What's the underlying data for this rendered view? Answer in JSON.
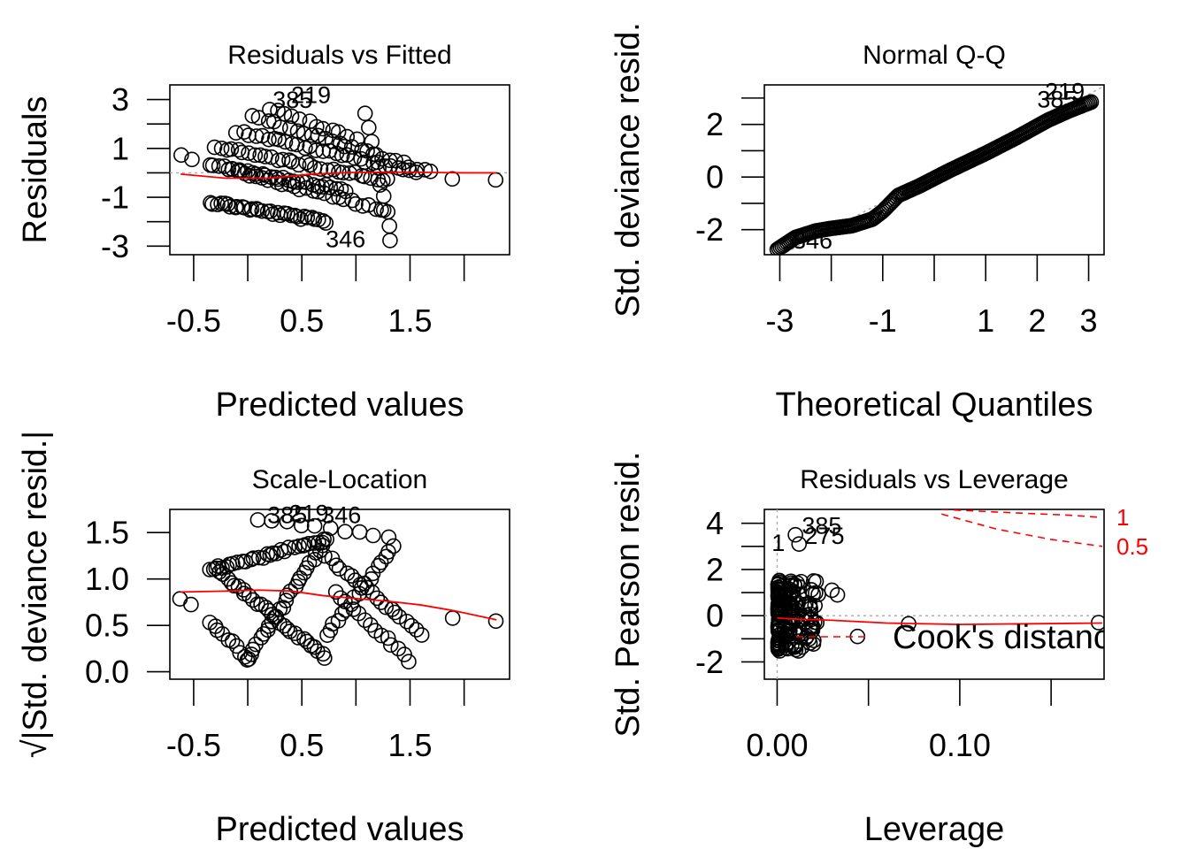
{
  "chart_data": [
    {
      "type": "scatter",
      "title": "Residuals vs Fitted",
      "xlabel": "Predicted values",
      "ylabel": "Residuals",
      "xlim": [
        -0.72,
        2.42
      ],
      "ylim": [
        -3.35,
        3.6
      ],
      "xticks": [
        -0.5,
        0.0,
        0.5,
        1.0,
        1.5,
        2.0
      ],
      "xtick_labels": [
        "-0.5",
        "",
        "0.5",
        "",
        "1.5",
        ""
      ],
      "yticks": [
        -3,
        -2,
        -1,
        0,
        1,
        2,
        3
      ],
      "ytick_labels": [
        "-3",
        "",
        "-1",
        "",
        "1",
        "",
        "3"
      ],
      "reference_line": {
        "y": 0,
        "style": "dotted",
        "color": "#aaaaaa"
      },
      "smooth": {
        "color": "#ff0000",
        "x": [
          -0.62,
          -0.2,
          0.2,
          0.6,
          1.0,
          1.5,
          2.0,
          2.3
        ],
        "y": [
          -0.05,
          -0.22,
          -0.22,
          -0.05,
          0.02,
          0.03,
          0.0,
          0.0
        ]
      },
      "labels": [
        {
          "text": "385",
          "x": 0.23,
          "y": 2.65
        },
        {
          "text": "219",
          "x": 0.4,
          "y": 2.85
        },
        {
          "text": "346",
          "x": 0.72,
          "y": -3.05
        }
      ],
      "bands": [
        {
          "x0": -0.62,
          "x1": -0.52,
          "y0": 0.7,
          "y1": 0.62,
          "n": 2
        },
        {
          "x0": -0.35,
          "x1": 0.72,
          "y0": -1.2,
          "y1": -2.0,
          "n": 34
        },
        {
          "x0": -0.35,
          "x1": 0.9,
          "y0": 0.35,
          "y1": -0.7,
          "n": 30
        },
        {
          "x0": -0.15,
          "x1": 1.3,
          "y0": 0.1,
          "y1": -1.55,
          "n": 26
        },
        {
          "x0": -0.3,
          "x1": 1.3,
          "y0": 1.05,
          "y1": -0.3,
          "n": 32
        },
        {
          "x0": -0.1,
          "x1": 1.55,
          "y0": 1.7,
          "y1": 0.05,
          "n": 30
        },
        {
          "x0": 0.05,
          "x1": 1.7,
          "y0": 2.3,
          "y1": 0.0,
          "n": 26
        },
        {
          "x0": 0.2,
          "x1": 1.0,
          "y0": 2.6,
          "y1": 1.4,
          "n": 12
        },
        {
          "x0": 1.9,
          "x1": 2.3,
          "y0": -0.25,
          "y1": -0.25,
          "n": 2
        },
        {
          "x0": 1.1,
          "x1": 1.32,
          "y0": 2.4,
          "y1": -2.7,
          "n": 10
        }
      ]
    },
    {
      "type": "scatter",
      "title": "Normal Q-Q",
      "xlabel": "Theoretical Quantiles",
      "ylabel": "Std. deviance resid.",
      "xlim": [
        -3.3,
        3.3
      ],
      "ylim": [
        -2.95,
        3.5
      ],
      "xticks": [
        -3,
        -2,
        -1,
        0,
        1,
        2,
        3
      ],
      "xtick_labels": [
        "-3",
        "",
        "-1",
        "",
        "1",
        "2",
        "3"
      ],
      "yticks": [
        -2,
        -1,
        0,
        1,
        2,
        3
      ],
      "ytick_labels": [
        "-2",
        "",
        "0",
        "",
        "2",
        ""
      ],
      "reference_line": {
        "x0": -3.3,
        "y0": -3.3,
        "x1": 3.3,
        "y1": 3.45,
        "style": "dotted",
        "color": "#aaaaaa"
      },
      "curve": {
        "x": [
          -3.05,
          -2.7,
          -2.3,
          -2.0,
          -1.6,
          -1.2,
          -1.0,
          -0.7,
          -0.3,
          0.3,
          1.0,
          1.6,
          2.2,
          2.6,
          3.05
        ],
        "y": [
          -2.75,
          -2.3,
          -2.05,
          -1.95,
          -1.85,
          -1.6,
          -1.3,
          -0.7,
          -0.35,
          0.25,
          0.9,
          1.5,
          2.15,
          2.5,
          2.85
        ],
        "n": 190
      },
      "labels": [
        {
          "text": "385",
          "x": 2.0,
          "y": 2.65
        },
        {
          "text": "219",
          "x": 2.15,
          "y": 2.95
        },
        {
          "text": "346",
          "x": -2.75,
          "y": -2.72
        }
      ]
    },
    {
      "type": "scatter",
      "title": "Scale-Location",
      "xlabel": "Predicted values",
      "ylabel": "√|Std. deviance resid.|",
      "xlim": [
        -0.72,
        2.42
      ],
      "ylim": [
        -0.08,
        1.75
      ],
      "xticks": [
        -0.5,
        0.0,
        0.5,
        1.0,
        1.5,
        2.0
      ],
      "xtick_labels": [
        "-0.5",
        "",
        "0.5",
        "",
        "1.5",
        ""
      ],
      "yticks": [
        0.0,
        0.5,
        1.0,
        1.5
      ],
      "ytick_labels": [
        "0.0",
        "0.5",
        "1.0",
        "1.5"
      ],
      "smooth": {
        "color": "#ff0000",
        "x": [
          -0.62,
          -0.2,
          0.1,
          0.4,
          0.7,
          1.0,
          1.3,
          1.6,
          1.9,
          2.3
        ],
        "y": [
          0.86,
          0.87,
          0.88,
          0.87,
          0.82,
          0.79,
          0.76,
          0.72,
          0.66,
          0.56
        ]
      },
      "labels": [
        {
          "text": "385",
          "x": 0.18,
          "y": 1.6
        },
        {
          "text": "219",
          "x": 0.38,
          "y": 1.62
        },
        {
          "text": "346",
          "x": 0.68,
          "y": 1.6
        }
      ],
      "bands": [
        {
          "x0": -0.62,
          "x1": -0.52,
          "y0": 0.77,
          "y1": 0.73,
          "n": 2
        },
        {
          "x0": -0.35,
          "x1": 0.72,
          "y0": 1.1,
          "y1": 1.42,
          "n": 30
        },
        {
          "x0": -0.3,
          "x1": 0.72,
          "y0": 1.1,
          "y1": 0.15,
          "n": 30
        },
        {
          "x0": 0.0,
          "x1": 0.72,
          "y0": 0.15,
          "y1": 1.42,
          "n": 26
        },
        {
          "x0": -0.35,
          "x1": 0.0,
          "y0": 0.55,
          "y1": 0.12,
          "n": 10
        },
        {
          "x0": 0.72,
          "x1": 1.35,
          "y0": 0.4,
          "y1": 1.35,
          "n": 18
        },
        {
          "x0": 0.72,
          "x1": 1.6,
          "y0": 1.25,
          "y1": 0.4,
          "n": 20
        },
        {
          "x0": 0.8,
          "x1": 1.5,
          "y0": 0.85,
          "y1": 0.12,
          "n": 14
        },
        {
          "x0": 0.1,
          "x1": 1.3,
          "y0": 1.65,
          "y1": 1.45,
          "n": 10
        },
        {
          "x0": 1.9,
          "x1": 2.3,
          "y0": 0.57,
          "y1": 0.55,
          "n": 2
        }
      ]
    },
    {
      "type": "scatter",
      "title": "Residuals vs Leverage",
      "xlabel": "Leverage",
      "ylabel": "Std. Pearson resid.",
      "xlim": [
        -0.007,
        0.179
      ],
      "ylim": [
        -2.75,
        4.6
      ],
      "xticks": [
        0.0,
        0.05,
        0.1,
        0.15
      ],
      "xtick_labels": [
        "0.00",
        "",
        "0.10",
        ""
      ],
      "yticks": [
        -2,
        -1,
        0,
        1,
        2,
        3,
        4
      ],
      "ytick_labels": [
        "-2",
        "",
        "0",
        "",
        "2",
        "",
        "4"
      ],
      "reference_lines": [
        {
          "y": 0,
          "style": "dotted",
          "color": "#aaaaaa"
        },
        {
          "x": 0,
          "style": "dotted",
          "color": "#aaaaaa"
        }
      ],
      "smooth": {
        "color": "#ff0000",
        "x": [
          0.0,
          0.01,
          0.03,
          0.06,
          0.1,
          0.14,
          0.178
        ],
        "y": [
          -0.1,
          -0.15,
          -0.2,
          -0.32,
          -0.38,
          -0.35,
          -0.32
        ]
      },
      "cook_contours": [
        {
          "level": "1",
          "color": "#ff0000",
          "style": "dashed",
          "x": [
            0.09,
            0.13,
            0.16,
            0.178
          ],
          "y": [
            4.6,
            4.45,
            4.35,
            4.25
          ]
        },
        {
          "level": "0.5",
          "color": "#ff0000",
          "style": "dashed",
          "x": [
            0.09,
            0.12,
            0.15,
            0.178
          ],
          "y": [
            4.4,
            3.75,
            3.3,
            3.0
          ]
        }
      ],
      "labels": [
        {
          "text": "385",
          "x": 0.0135,
          "y": 3.55
        },
        {
          "text": "275",
          "x": 0.015,
          "y": 3.1
        },
        {
          "text": "1",
          "x": -0.003,
          "y": 2.8
        }
      ],
      "points": [
        [
          0.072,
          -0.35
        ],
        [
          0.176,
          -0.3
        ],
        [
          0.044,
          -0.9
        ],
        [
          0.033,
          0.9
        ],
        [
          0.03,
          1.1
        ],
        [
          0.02,
          1.5
        ],
        [
          0.018,
          0.4
        ],
        [
          0.01,
          3.5
        ],
        [
          0.012,
          3.1
        ]
      ],
      "cloud": {
        "x0": 0.0005,
        "x1": 0.045,
        "y0": -2.1,
        "y1": 3.6,
        "n": 170
      },
      "legend": {
        "text": "Cook's distance",
        "color": "#ff0000",
        "style": "dashed",
        "position": "bottom-right"
      }
    }
  ]
}
